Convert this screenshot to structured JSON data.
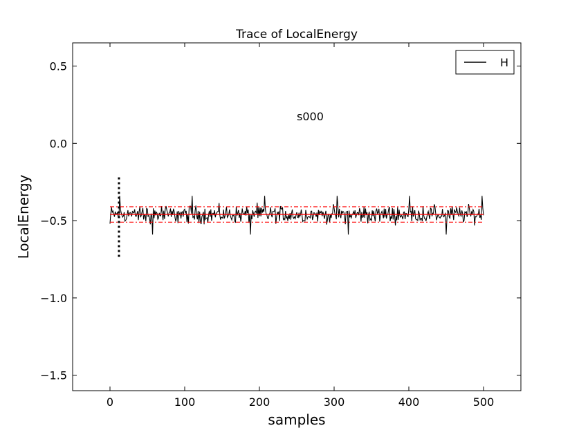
{
  "chart_data": {
    "type": "line",
    "title": "Trace of LocalEnergy",
    "xlabel": "samples",
    "ylabel": "LocalEnergy",
    "annotation": "s000",
    "xlim": [
      -50,
      550
    ],
    "ylim": [
      -1.6,
      0.65
    ],
    "xticks": [
      {
        "value": 0,
        "label": "0"
      },
      {
        "value": 100,
        "label": "100"
      },
      {
        "value": 200,
        "label": "200"
      },
      {
        "value": 300,
        "label": "300"
      },
      {
        "value": 400,
        "label": "400"
      },
      {
        "value": 500,
        "label": "500"
      }
    ],
    "yticks": [
      {
        "value": 0.5,
        "label": "0.5"
      },
      {
        "value": 0.0,
        "label": "0.0"
      },
      {
        "value": -0.5,
        "label": "−0.5"
      },
      {
        "value": -1.0,
        "label": "−1.0"
      },
      {
        "value": -1.5,
        "label": "−1.5"
      }
    ],
    "legend": {
      "position": "top-right",
      "entries": [
        {
          "label": "H",
          "color": "#000000"
        }
      ]
    },
    "series": [
      {
        "name": "H",
        "color": "#000000",
        "y_start": -0.52,
        "y_mean": -0.46,
        "y_min": -0.59,
        "y_max": -0.34,
        "x": [
          0,
          500
        ]
      }
    ],
    "mean_line": {
      "value": -0.46,
      "x": [
        0,
        500
      ],
      "color": "#ff0000"
    },
    "error_band": {
      "upper": -0.41,
      "lower": -0.51,
      "x": [
        0,
        500
      ],
      "color": "#ff0000",
      "style": "dash-dot"
    },
    "equilibration_marker": {
      "x": 12,
      "y_range": [
        -0.74,
        -0.22
      ],
      "color": "#000000",
      "style": "dotted"
    },
    "colors": {
      "trace": "#000000",
      "mean": "#ff0000",
      "axes": "#000000"
    }
  }
}
